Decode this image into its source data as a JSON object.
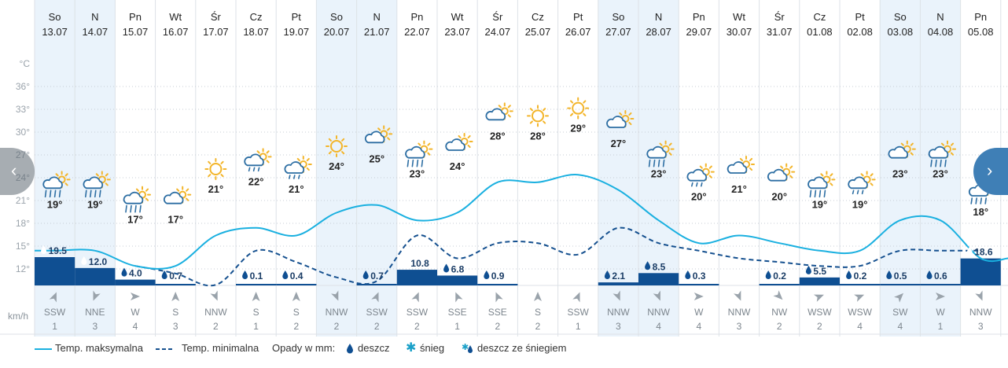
{
  "chart_data": {
    "type": "line",
    "days": [
      {
        "dow": "So",
        "date": "13.07",
        "weekend": true,
        "tmax": 19,
        "tmin": null,
        "icon": "rain-sun",
        "precip": 19.5,
        "precip_label": "19.5",
        "wind_dir": "SSW",
        "wind_speed": 1
      },
      {
        "dow": "N",
        "date": "14.07",
        "weekend": true,
        "tmax": 19,
        "tmin": null,
        "icon": "rain-sun",
        "precip": 12.0,
        "precip_label": "12.0",
        "wind_dir": "NNE",
        "wind_speed": 3
      },
      {
        "dow": "Pn",
        "date": "15.07",
        "weekend": false,
        "tmax": 17,
        "tmin": 12.5,
        "icon": "rain-sun",
        "precip": 4.0,
        "precip_label": "4.0",
        "wind_dir": "W",
        "wind_speed": 4
      },
      {
        "dow": "Wt",
        "date": "16.07",
        "weekend": false,
        "tmax": 17,
        "tmin": 11.5,
        "icon": "cloud-sun",
        "precip": 0.7,
        "precip_label": "0.7",
        "wind_dir": "S",
        "wind_speed": 3
      },
      {
        "dow": "Śr",
        "date": "17.07",
        "weekend": false,
        "tmax": 21,
        "tmin": 10,
        "icon": "sun",
        "precip": 0,
        "precip_label": "",
        "wind_dir": "NNW",
        "wind_speed": 2
      },
      {
        "dow": "Cz",
        "date": "18.07",
        "weekend": false,
        "tmax": 22,
        "tmin": 14.5,
        "icon": "drizzle-sun",
        "precip": 0.1,
        "precip_label": "0.1",
        "wind_dir": "S",
        "wind_speed": 1
      },
      {
        "dow": "Pt",
        "date": "19.07",
        "weekend": false,
        "tmax": 21,
        "tmin": 13,
        "icon": "drizzle-sun",
        "precip": 0.4,
        "precip_label": "0.4",
        "wind_dir": "S",
        "wind_speed": 2
      },
      {
        "dow": "So",
        "date": "20.07",
        "weekend": true,
        "tmax": 24,
        "tmin": 11,
        "icon": "sun",
        "precip": 0,
        "precip_label": "",
        "wind_dir": "NNW",
        "wind_speed": 2
      },
      {
        "dow": "N",
        "date": "21.07",
        "weekend": true,
        "tmax": 25,
        "tmin": 10.5,
        "icon": "cloud-sun",
        "precip": 0.7,
        "precip_label": "0.7",
        "wind_dir": "SSW",
        "wind_speed": 2
      },
      {
        "dow": "Pn",
        "date": "22.07",
        "weekend": false,
        "tmax": 23,
        "tmin": 16.5,
        "icon": "rain-sun",
        "precip": 10.8,
        "precip_label": "10.8",
        "wind_dir": "SSW",
        "wind_speed": 2
      },
      {
        "dow": "Wt",
        "date": "23.07",
        "weekend": false,
        "tmax": 24,
        "tmin": 13.5,
        "icon": "cloud-sun",
        "precip": 6.8,
        "precip_label": "6.8",
        "wind_dir": "SSE",
        "wind_speed": 1
      },
      {
        "dow": "Śr",
        "date": "24.07",
        "weekend": false,
        "tmax": 28,
        "tmin": 15.5,
        "icon": "cloud-sun",
        "precip": 0.9,
        "precip_label": "0.9",
        "wind_dir": "SSE",
        "wind_speed": 2
      },
      {
        "dow": "Cz",
        "date": "25.07",
        "weekend": false,
        "tmax": 28,
        "tmin": 15.5,
        "icon": "sun",
        "precip": 0,
        "precip_label": "",
        "wind_dir": "S",
        "wind_speed": 2
      },
      {
        "dow": "Pt",
        "date": "26.07",
        "weekend": false,
        "tmax": 29,
        "tmin": 14,
        "icon": "sun",
        "precip": 0,
        "precip_label": "",
        "wind_dir": "SSW",
        "wind_speed": 1
      },
      {
        "dow": "So",
        "date": "27.07",
        "weekend": true,
        "tmax": 27,
        "tmin": 17.5,
        "icon": "cloud-sun",
        "precip": 2.1,
        "precip_label": "2.1",
        "wind_dir": "NNW",
        "wind_speed": 3
      },
      {
        "dow": "N",
        "date": "28.07",
        "weekend": true,
        "tmax": 23,
        "tmin": 15.5,
        "icon": "rain-sun",
        "precip": 8.5,
        "precip_label": "8.5",
        "wind_dir": "NNW",
        "wind_speed": 4
      },
      {
        "dow": "Pn",
        "date": "29.07",
        "weekend": false,
        "tmax": 20,
        "tmin": 14.5,
        "icon": "drizzle-sun",
        "precip": 0.3,
        "precip_label": "0.3",
        "wind_dir": "W",
        "wind_speed": 4
      },
      {
        "dow": "Wt",
        "date": "30.07",
        "weekend": false,
        "tmax": 21,
        "tmin": 13.5,
        "icon": "cloud-sun",
        "precip": 0,
        "precip_label": "",
        "wind_dir": "NNW",
        "wind_speed": 3
      },
      {
        "dow": "Śr",
        "date": "31.07",
        "weekend": false,
        "tmax": 20,
        "tmin": 13,
        "icon": "cloud-sun",
        "precip": 0.2,
        "precip_label": "0.2",
        "wind_dir": "NW",
        "wind_speed": 2
      },
      {
        "dow": "Cz",
        "date": "01.08",
        "weekend": false,
        "tmax": 19,
        "tmin": 12.5,
        "icon": "rain-sun",
        "precip": 5.5,
        "precip_label": "5.5",
        "wind_dir": "WSW",
        "wind_speed": 2
      },
      {
        "dow": "Pt",
        "date": "02.08",
        "weekend": false,
        "tmax": 19,
        "tmin": 12.5,
        "icon": "drizzle-sun",
        "precip": 0.2,
        "precip_label": "0.2",
        "wind_dir": "WSW",
        "wind_speed": 4
      },
      {
        "dow": "So",
        "date": "03.08",
        "weekend": true,
        "tmax": 23,
        "tmin": 14.5,
        "icon": "cloud-sun",
        "precip": 0.5,
        "precip_label": "0.5",
        "wind_dir": "SW",
        "wind_speed": 4
      },
      {
        "dow": "N",
        "date": "04.08",
        "weekend": true,
        "tmax": 23,
        "tmin": 14.5,
        "icon": "rain-sun",
        "precip": 0.6,
        "precip_label": "0.6",
        "wind_dir": "W",
        "wind_speed": 1
      },
      {
        "dow": "Pn",
        "date": "05.08",
        "weekend": false,
        "tmax": 18,
        "tmin": 14.5,
        "icon": "rain-snow",
        "precip": 18.6,
        "precip_label": "18.6",
        "wind_dir": "NNW",
        "wind_speed": 3
      }
    ],
    "y_ticks": [
      "°C",
      "36°",
      "33°",
      "30°",
      "27°",
      "24°",
      "21°",
      "18°",
      "15°",
      "12°"
    ],
    "ylim": [
      9,
      39
    ],
    "precip_max": 19.5,
    "wind_unit": "km/h",
    "grid": true
  },
  "legend": {
    "tmax": "Temp. maksymalna",
    "tmin": "Temp. minimalna",
    "precip_title": "Opady w mm:",
    "rain": "deszcz",
    "snow": "śnieg",
    "rain_snow": "deszcz ze śniegiem"
  },
  "nav": {
    "prev": "‹",
    "next": "›"
  },
  "colors": {
    "tmax": "#1ab0e0",
    "tmin": "#15508f",
    "precip": "#0f4f92",
    "weekend": "#eaf3fb",
    "grid": "#dde2e7",
    "sun": "#f3b52a",
    "cloud": "#2d6ea3",
    "wind_arrow": "#9aa3ab"
  }
}
